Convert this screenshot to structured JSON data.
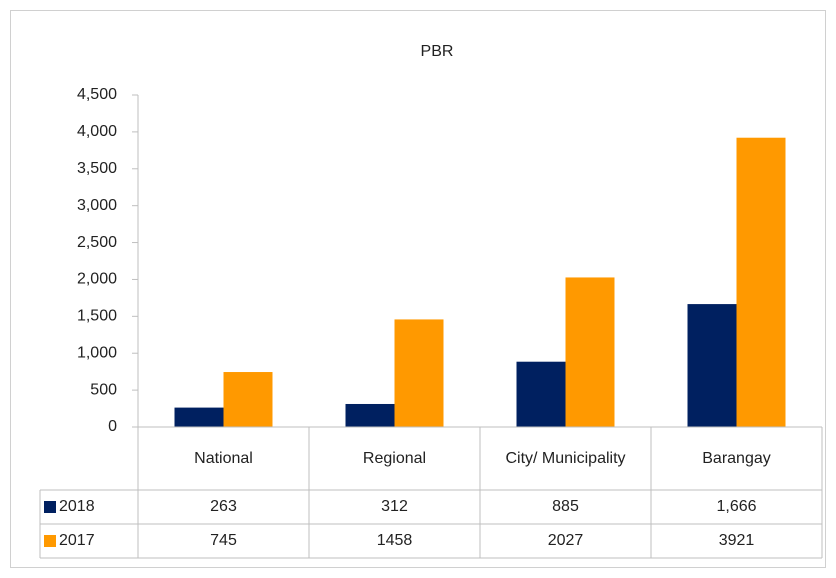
{
  "chart_data": {
    "type": "bar",
    "title": "PBR",
    "categories": [
      "National",
      "Regional",
      "City/ Municipality",
      "Barangay"
    ],
    "series": [
      {
        "name": "2018",
        "color": "#002060",
        "values": [
          263,
          312,
          885,
          1666
        ],
        "value_labels": [
          "263",
          "312",
          "885",
          "1,666"
        ]
      },
      {
        "name": "2017",
        "color": "#ff9900",
        "values": [
          745,
          1458,
          2027,
          3921
        ]
      }
    ],
    "ylim": [
      0,
      4500
    ],
    "yticks": [
      0,
      500,
      {
        "value": 1000,
        "label": "1,000"
      },
      {
        "value": 1500,
        "label": "1,500"
      },
      {
        "value": 2000,
        "label": "2,000"
      },
      {
        "value": 2500,
        "label": "2,500"
      },
      {
        "value": 3000,
        "label": "3,000"
      },
      {
        "value": 3500,
        "label": "3,500"
      },
      {
        "value": 4000,
        "label": "4,000"
      },
      {
        "value": 4500,
        "label": "4,500"
      }
    ],
    "grid": false,
    "legend": "data-table"
  }
}
